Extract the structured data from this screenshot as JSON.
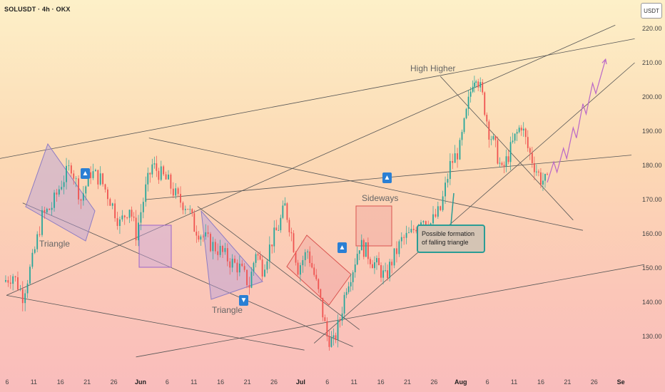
{
  "header": {
    "symbol": "SOLUSDT · 4h · OKX",
    "currency": "USDT"
  },
  "annotations": {
    "triangle_1": "Triangle",
    "triangle_2": "Triangle",
    "sideways": "Sideways",
    "high_higher": "High Higher",
    "callout": "Possible formation of falling triangle"
  },
  "icons": {
    "up_arrow": "arrow-up-icon",
    "down_arrow": "arrow-down-icon"
  },
  "colors": {
    "bull_candle": "#26a69a",
    "bear_candle": "#ef5350",
    "triangle_fill": "#b39ddb",
    "box_fill": "#ef9a9a",
    "signal": "#2a7fd4",
    "callout_border": "#2a9d95",
    "projection": "#ba68c8"
  },
  "chart_data": {
    "type": "candlestick",
    "title": "SOLUSDT · 4h · OKX",
    "ylabel": "USDT",
    "ylim": [
      125,
      225
    ],
    "y_ticks": [
      "220.00",
      "210.00",
      "200.00",
      "190.00",
      "180.00",
      "170.00",
      "160.00",
      "150.00",
      "140.00",
      "130.00"
    ],
    "x_ticks": [
      "6",
      "11",
      "16",
      "21",
      "26",
      "Jun",
      "6",
      "11",
      "16",
      "21",
      "26",
      "Jul",
      "6",
      "11",
      "16",
      "21",
      "26",
      "Aug",
      "6",
      "11",
      "16",
      "21",
      "26",
      "Se"
    ],
    "grid": false,
    "price_path": [
      [
        1,
        146
      ],
      [
        4,
        148
      ],
      [
        7,
        142
      ],
      [
        10,
        152
      ],
      [
        13,
        165
      ],
      [
        16,
        168
      ],
      [
        19,
        175
      ],
      [
        22,
        180
      ],
      [
        25,
        170
      ],
      [
        28,
        178
      ],
      [
        31,
        176
      ],
      [
        34,
        170
      ],
      [
        37,
        163
      ],
      [
        40,
        168
      ],
      [
        42,
        160
      ],
      [
        45,
        173
      ],
      [
        47,
        180
      ],
      [
        49,
        178
      ],
      [
        52,
        175
      ],
      [
        55,
        170
      ],
      [
        58,
        168
      ],
      [
        60,
        162
      ],
      [
        62,
        160
      ],
      [
        65,
        157
      ],
      [
        68,
        155
      ],
      [
        71,
        152
      ],
      [
        74,
        150
      ],
      [
        77,
        145
      ],
      [
        79,
        155
      ],
      [
        81,
        150
      ],
      [
        84,
        158
      ],
      [
        86,
        162
      ],
      [
        88,
        168
      ],
      [
        90,
        160
      ],
      [
        92,
        150
      ],
      [
        95,
        155
      ],
      [
        97,
        148
      ],
      [
        99,
        140
      ],
      [
        101,
        130
      ],
      [
        103,
        128
      ],
      [
        105,
        135
      ],
      [
        107,
        145
      ],
      [
        109,
        150
      ],
      [
        111,
        157
      ],
      [
        113,
        155
      ],
      [
        115,
        152
      ],
      [
        117,
        150
      ],
      [
        119,
        147
      ],
      [
        121,
        152
      ],
      [
        124,
        158
      ],
      [
        127,
        160
      ],
      [
        130,
        165
      ],
      [
        133,
        163
      ],
      [
        136,
        167
      ],
      [
        139,
        180
      ],
      [
        142,
        185
      ],
      [
        144,
        195
      ],
      [
        146,
        205
      ],
      [
        147,
        207
      ],
      [
        149,
        200
      ],
      [
        151,
        190
      ],
      [
        153,
        185
      ],
      [
        155,
        178
      ],
      [
        157,
        183
      ],
      [
        159,
        188
      ],
      [
        161,
        192
      ],
      [
        163,
        185
      ],
      [
        165,
        180
      ],
      [
        167,
        176
      ],
      [
        169,
        175
      ]
    ],
    "projection": [
      [
        169,
        175
      ],
      [
        171,
        181
      ],
      [
        172,
        178
      ],
      [
        174,
        185
      ],
      [
        175,
        182
      ],
      [
        177,
        191
      ],
      [
        178,
        188
      ],
      [
        180,
        198
      ],
      [
        181,
        195
      ],
      [
        183,
        204
      ],
      [
        184,
        201
      ],
      [
        187,
        211
      ]
    ],
    "trendlines": [
      {
        "from": [
          0,
          182
        ],
        "to": [
          196,
          217
        ]
      },
      {
        "from": [
          2,
          142
        ],
        "to": [
          190,
          221
        ]
      },
      {
        "from": [
          2,
          142
        ],
        "to": [
          94,
          126
        ]
      },
      {
        "from": [
          46,
          188
        ],
        "to": [
          180,
          161
        ]
      },
      {
        "from": [
          7,
          169
        ],
        "to": [
          109,
          127
        ]
      },
      {
        "from": [
          61,
          168
        ],
        "to": [
          111,
          132
        ]
      },
      {
        "from": [
          97,
          128
        ],
        "to": [
          196,
          210
        ]
      },
      {
        "from": [
          45,
          170
        ],
        "to": [
          195,
          183
        ]
      },
      {
        "from": [
          136,
          206
        ],
        "to": [
          177,
          164
        ]
      },
      {
        "from": [
          42,
          124
        ],
        "to": [
          199,
          151
        ]
      }
    ]
  }
}
